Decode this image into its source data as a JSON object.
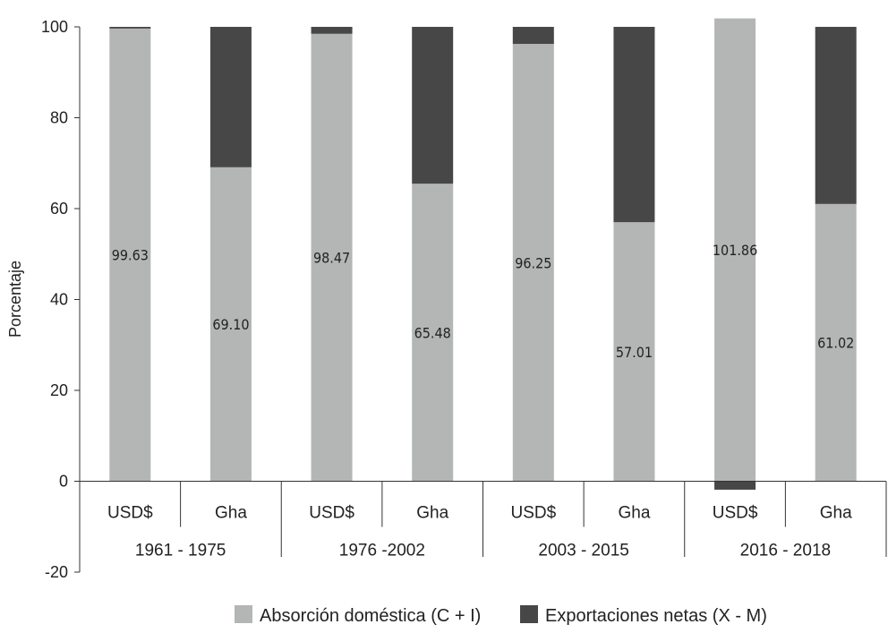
{
  "chart_data": {
    "type": "bar",
    "stacked": true,
    "ylabel": "Porcentaje",
    "ylim": [
      -20,
      100
    ],
    "yticks": [
      100,
      80,
      60,
      40,
      20,
      0,
      -20
    ],
    "grid": false,
    "legend_position": "bottom",
    "groups": [
      "1961 - 1975",
      "1976 -2002",
      "2003 - 2015",
      "2016 - 2018"
    ],
    "categories": [
      "USD$",
      "Gha",
      "USD$",
      "Gha",
      "USD$",
      "Gha",
      "USD$",
      "Gha"
    ],
    "series": [
      {
        "name": "Absorción doméstica (C + I)",
        "color": "#b3b6b5",
        "values": [
          99.63,
          69.1,
          98.47,
          65.48,
          96.25,
          57.01,
          101.86,
          61.02
        ],
        "labels": [
          "99.63",
          "69.10",
          "98.47",
          "65.48",
          "96.25",
          "57.01",
          "101.86",
          "61.02"
        ]
      },
      {
        "name": "Exportaciones netas (X - M)",
        "color": "#474747",
        "values": [
          0.37,
          30.9,
          1.53,
          34.52,
          3.75,
          42.99,
          -1.86,
          38.98
        ]
      }
    ]
  }
}
